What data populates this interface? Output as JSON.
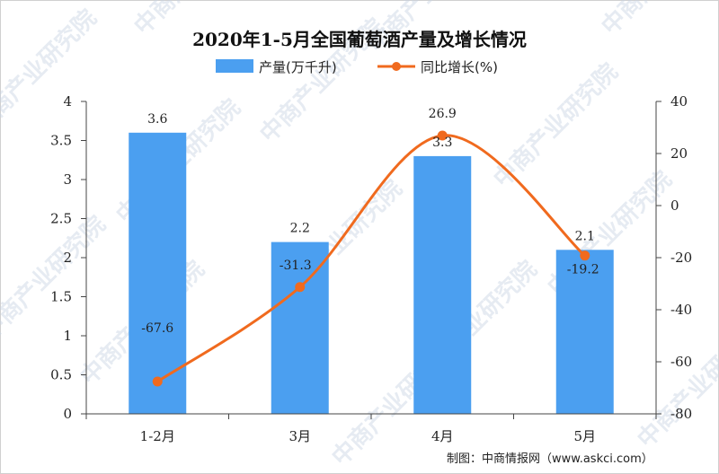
{
  "chart_data": {
    "type": "bar",
    "title": "2020年1-5月全国葡萄酒产量及增长情况",
    "categories": [
      "1-2月",
      "3月",
      "4月",
      "5月"
    ],
    "series": [
      {
        "name": "产量(万千升)",
        "type": "bar",
        "axis": "left",
        "values": [
          3.6,
          2.2,
          3.3,
          2.1
        ],
        "labels": [
          "3.6",
          "2.2",
          "3.3",
          "2.1"
        ],
        "color": "#4b9ff0"
      },
      {
        "name": "同比增长(%)",
        "type": "line",
        "axis": "right",
        "values": [
          -67.6,
          -31.3,
          26.9,
          -19.2
        ],
        "labels": [
          "-67.6",
          "-31.3",
          "26.9",
          "-19.2"
        ],
        "color": "#f06a1e"
      }
    ],
    "y_left": {
      "min": 0,
      "max": 4,
      "ticks": [
        "0",
        "0.5",
        "1",
        "1.5",
        "2",
        "2.5",
        "3",
        "3.5",
        "4"
      ]
    },
    "y_right": {
      "min": -80,
      "max": 40,
      "ticks": [
        "-80",
        "-60",
        "-40",
        "-20",
        "0",
        "20",
        "40"
      ]
    },
    "legend": "top-center",
    "grid": false
  },
  "source": "制图：中商情报网（www.askci.com）",
  "watermark": "中商产业研究院"
}
